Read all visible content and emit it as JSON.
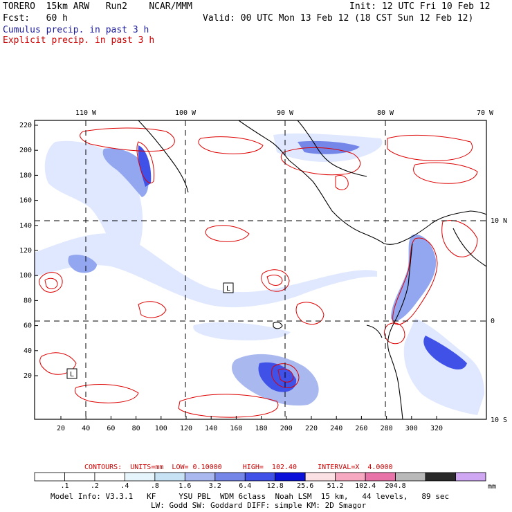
{
  "header": {
    "model_line": "TORERO  15km ARW   Run2    NCAR/MMM",
    "init_line": "Init: 12 UTC Fri 10 Feb 12",
    "fcst_line": "Fcst:   60 h",
    "valid_line": "Valid: 00 UTC Mon 13 Feb 12 (18 CST Sun 12 Feb 12)",
    "legend_cumulus": "Cumulus precip. in past 3 h",
    "legend_explicit": "Explicit precip. in past 3 h"
  },
  "map": {
    "top_lon_labels": [
      "110 W",
      "100 W",
      "90 W",
      "80 W",
      "70 W"
    ],
    "right_lat_labels": [
      "10 N",
      "0",
      "10 S"
    ],
    "left_ticks": [
      "220",
      "200",
      "180",
      "160",
      "140",
      "120",
      "100",
      "80",
      "60",
      "40",
      "20"
    ],
    "bottom_ticks": [
      "20",
      "40",
      "60",
      "80",
      "100",
      "120",
      "140",
      "160",
      "180",
      "200",
      "220",
      "240",
      "260",
      "280",
      "300",
      "320"
    ],
    "low_markers": [
      "L",
      "L"
    ],
    "colors": {
      "contour": "#dd0000",
      "coast": "#000000",
      "precip_light": "#dfe8ff",
      "precip_mid": "#93a6f0",
      "precip_heavy": "#2a3de0"
    }
  },
  "contour_info": {
    "text": "CONTOURS:  UNITS=mm  LOW= 0.10000     HIGH=  102.40     INTERVAL=X  4.0000"
  },
  "colorbar": {
    "labels": [
      ".1",
      ".2",
      ".4",
      ".8",
      "1.6",
      "3.2",
      "6.4",
      "12.8",
      "25.6",
      "51.2",
      "102.4",
      "204.8"
    ],
    "unit": "mm",
    "colors": [
      "#ffffff",
      "#ffffff",
      "#ffffff",
      "#e6f4fb",
      "#c8e2f5",
      "#a9b9f0",
      "#7486e8",
      "#3f51e6",
      "#0a10d8",
      "#fbe0e4",
      "#f7a9c2",
      "#e873a8",
      "#b9b9b9",
      "#2a2a2a",
      "#cfa7f2"
    ]
  },
  "footer": {
    "model_info": "Model Info: V3.3.1   KF     YSU PBL  WDM 6class  Noah LSM  15 km,   44 levels,   89 sec",
    "physics": "LW: Godd SW: Goddard DIFF: simple KM: 2D Smagor"
  }
}
